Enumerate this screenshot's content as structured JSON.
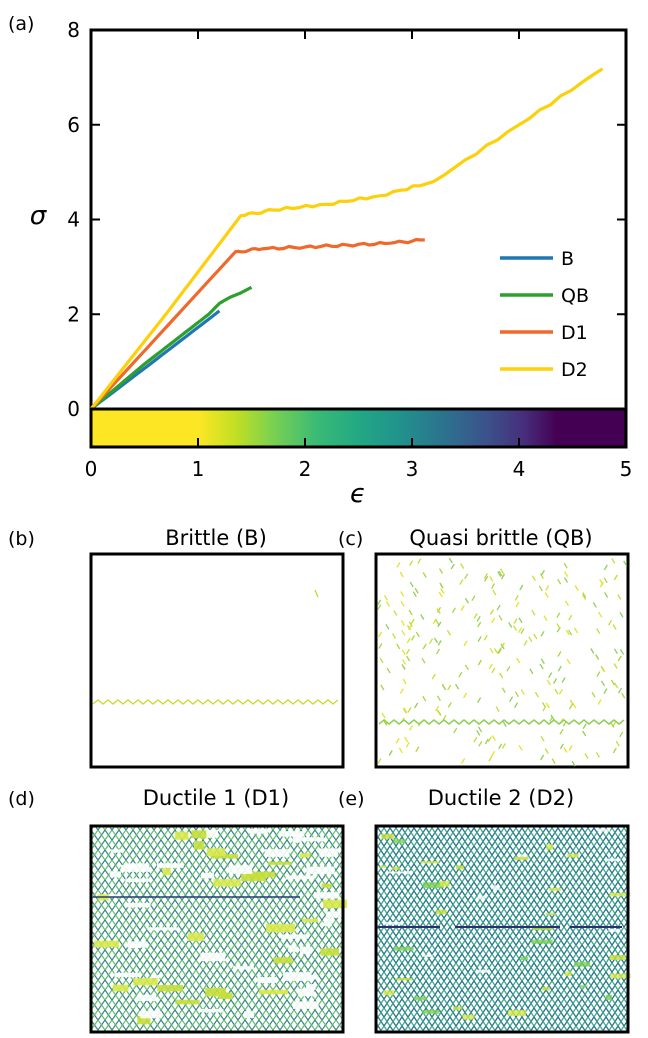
{
  "panels": {
    "a": {
      "label": "(a)"
    },
    "b": {
      "label": "(b)",
      "title": "Brittle (B)"
    },
    "c": {
      "label": "(c)",
      "title": "Quasi brittle (QB)"
    },
    "d": {
      "label": "(d)",
      "title": "Ductile 1 (D1)"
    },
    "e": {
      "label": "(e)",
      "title": "Ductile 2 (D2)"
    }
  },
  "chart_data": {
    "type": "line",
    "xlabel": "ϵ",
    "ylabel": "σ",
    "xlim": [
      0,
      5
    ],
    "ylim": [
      0,
      8
    ],
    "xticks": [
      0,
      1,
      2,
      3,
      4,
      5
    ],
    "yticks": [
      0,
      2,
      4,
      6,
      8
    ],
    "x_tick_labels": [
      "0",
      "1",
      "2",
      "3",
      "4",
      "5"
    ],
    "y_tick_labels": [
      "0",
      "2",
      "4",
      "6",
      "8"
    ],
    "legend_position": "lower-right",
    "colorbar": {
      "range": [
        0,
        5
      ],
      "colormap": "viridis reversed",
      "position": "below plot"
    },
    "series": [
      {
        "name": "B",
        "color": "#1f77b4",
        "points": [
          [
            0,
            0
          ],
          [
            0.6,
            1.03
          ],
          [
            1.2,
            2.07
          ]
        ]
      },
      {
        "name": "QB",
        "color": "#2ca02c",
        "points": [
          [
            0,
            0
          ],
          [
            0.5,
            0.95
          ],
          [
            0.9,
            1.65
          ],
          [
            1.1,
            2.0
          ],
          [
            1.2,
            2.23
          ],
          [
            1.3,
            2.36
          ],
          [
            1.4,
            2.45
          ],
          [
            1.5,
            2.57
          ]
        ]
      },
      {
        "name": "D1",
        "color": "#f0692c",
        "points": [
          [
            0,
            0
          ],
          [
            0.7,
            1.72
          ],
          [
            1.35,
            3.32
          ],
          [
            1.6,
            3.38
          ],
          [
            2.0,
            3.42
          ],
          [
            2.4,
            3.46
          ],
          [
            2.8,
            3.5
          ],
          [
            3.12,
            3.57
          ]
        ]
      },
      {
        "name": "D2",
        "color": "#fcd00b",
        "points": [
          [
            0,
            0
          ],
          [
            0.7,
            2.0
          ],
          [
            1.4,
            4.08
          ],
          [
            1.7,
            4.2
          ],
          [
            2.2,
            4.32
          ],
          [
            2.7,
            4.5
          ],
          [
            3.2,
            4.8
          ],
          [
            4.0,
            6.0
          ],
          [
            4.78,
            7.18
          ]
        ]
      }
    ]
  }
}
